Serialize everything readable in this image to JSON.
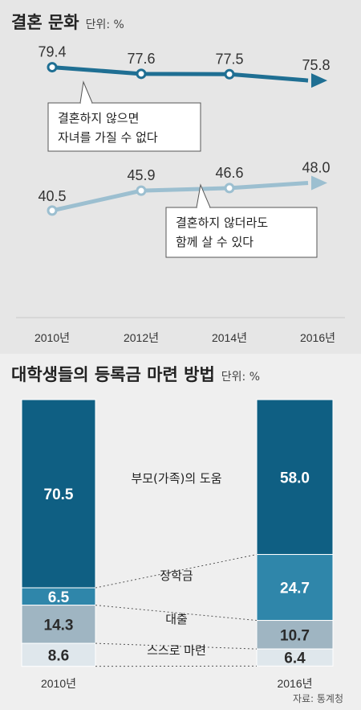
{
  "chart1": {
    "title": "결혼 문화",
    "unit": "단위: %",
    "x": [
      "2010년",
      "2012년",
      "2014년",
      "2016년"
    ],
    "ylim": [
      30,
      90
    ],
    "series": [
      {
        "name": "결혼하지 않으면 자녀를 가질 수 없다",
        "label_lines": [
          "결혼하지 않으면",
          "자녀를 가질 수 없다"
        ],
        "values": [
          79.4,
          77.6,
          77.5,
          75.8
        ],
        "color": "#1f6f93"
      },
      {
        "name": "결혼하지 않더라도 함께 살 수 있다",
        "label_lines": [
          "결혼하지 않더라도",
          "함께 살 수 있다"
        ],
        "values": [
          40.5,
          45.9,
          46.6,
          48.0
        ],
        "color": "#9cbfd0"
      }
    ]
  },
  "chart2": {
    "title": "대학생들의 등록금 마련 방법",
    "unit": "단위: %",
    "categories": [
      "2010년",
      "2016년"
    ],
    "segments": [
      {
        "name": "부모(가족)의 도움",
        "values": [
          70.5,
          58.0
        ],
        "color": "#0f5f83"
      },
      {
        "name": "장학금",
        "values": [
          6.5,
          24.7
        ],
        "color": "#2f86aa"
      },
      {
        "name": "대출",
        "values": [
          14.3,
          10.7
        ],
        "color": "#9fb5c2"
      },
      {
        "name": "스스로 마련",
        "values": [
          8.6,
          6.4
        ],
        "color": "#dfe7ec"
      }
    ],
    "source": "자료: 통계청"
  }
}
